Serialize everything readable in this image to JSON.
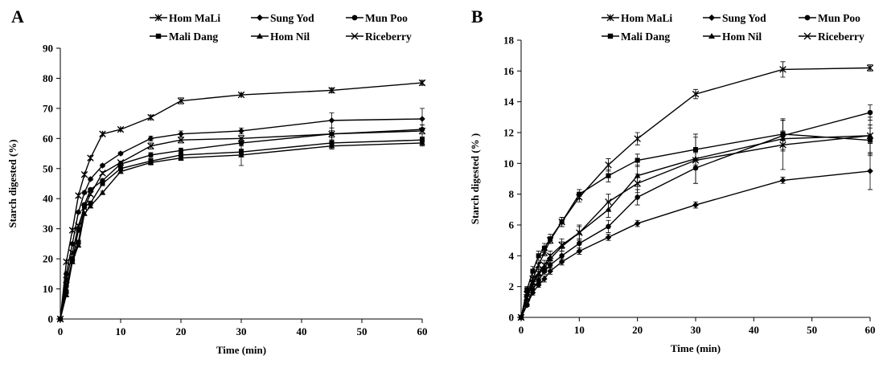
{
  "chart_data": [
    {
      "type": "line",
      "panel_label": "A",
      "xlabel": "Time (min)",
      "ylabel": "Starch digested  (%)",
      "xlim": [
        0,
        60
      ],
      "ylim": [
        0,
        90
      ],
      "xticks": [
        0,
        10,
        20,
        30,
        40,
        50,
        60
      ],
      "yticks": [
        0,
        10,
        20,
        30,
        40,
        50,
        60,
        70,
        80,
        90
      ],
      "grid": false,
      "legend": "top",
      "series": [
        {
          "name": "Hom MaLi",
          "marker": "asterisk",
          "x": [
            0,
            1,
            2,
            3,
            4,
            5,
            7,
            10,
            15,
            20,
            30,
            45,
            60
          ],
          "values": [
            0,
            19,
            29.5,
            41,
            48,
            53.5,
            61.5,
            63,
            67,
            72.5,
            74.5,
            76,
            78.5
          ],
          "errors": [
            0,
            0.5,
            0.5,
            0.5,
            0.5,
            0.5,
            0.5,
            0.5,
            0.8,
            1,
            0.5,
            0.8,
            0.8
          ]
        },
        {
          "name": "Sung Yod",
          "marker": "diamond",
          "x": [
            0,
            1,
            2,
            3,
            4,
            5,
            7,
            10,
            15,
            20,
            30,
            45,
            60
          ],
          "values": [
            0,
            15,
            25,
            35.5,
            42,
            46.5,
            51,
            55,
            60,
            61.5,
            62.5,
            66,
            66.5
          ],
          "errors": [
            0,
            0.5,
            0.5,
            0.5,
            0.5,
            0.5,
            0.5,
            0.5,
            0.8,
            1,
            1,
            2.5,
            3.5
          ]
        },
        {
          "name": "Mun Poo",
          "marker": "circle",
          "x": [
            0,
            1,
            2,
            3,
            4,
            5,
            7,
            10,
            15,
            20,
            30,
            45,
            60
          ],
          "values": [
            0,
            11,
            19.5,
            29.5,
            38,
            43,
            46,
            51.5,
            54.5,
            56,
            58.5,
            61.5,
            63
          ],
          "errors": [
            0,
            0.5,
            0.5,
            0.5,
            0.5,
            0.5,
            0.5,
            0.5,
            0.8,
            0.8,
            1,
            1.2,
            1.5
          ]
        },
        {
          "name": "Mali Dang",
          "marker": "square",
          "x": [
            0,
            1,
            2,
            3,
            4,
            5,
            7,
            10,
            15,
            20,
            30,
            45,
            60
          ],
          "values": [
            0,
            9,
            20,
            25.5,
            37.5,
            38.5,
            45,
            50,
            52.5,
            54.5,
            55.5,
            58.5,
            59.5
          ],
          "errors": [
            0,
            0.5,
            0.5,
            0.5,
            0.5,
            0.5,
            0.5,
            0.5,
            0.8,
            0.8,
            1,
            1,
            1
          ]
        },
        {
          "name": "Hom Nil",
          "marker": "triangle",
          "x": [
            0,
            1,
            2,
            3,
            4,
            5,
            7,
            10,
            15,
            20,
            30,
            45,
            60
          ],
          "values": [
            0,
            8,
            19,
            24.5,
            35,
            37.5,
            42,
            49,
            52,
            53.5,
            54.5,
            57.5,
            58.5
          ],
          "errors": [
            0,
            0.5,
            0.5,
            0.5,
            0.5,
            0.5,
            0.5,
            0.5,
            0.8,
            0.8,
            3.5,
            1,
            1
          ]
        },
        {
          "name": "Riceberry",
          "marker": "x",
          "x": [
            0,
            1,
            2,
            3,
            4,
            5,
            7,
            10,
            15,
            20,
            30,
            45,
            60
          ],
          "values": [
            0,
            13,
            22,
            31,
            37,
            41.5,
            48.5,
            52,
            57.5,
            59.5,
            60,
            61.5,
            62.5
          ],
          "errors": [
            0,
            0.5,
            0.5,
            0.5,
            0.5,
            0.5,
            0.5,
            0.5,
            1,
            1,
            1,
            2,
            2
          ]
        }
      ]
    },
    {
      "type": "line",
      "panel_label": "B",
      "xlabel": "Time (min)",
      "ylabel": "Starch digested  (% )",
      "xlim": [
        0,
        60
      ],
      "ylim": [
        0,
        18
      ],
      "xticks": [
        0,
        10,
        20,
        30,
        40,
        50,
        60
      ],
      "yticks": [
        0,
        2,
        4,
        6,
        8,
        10,
        12,
        14,
        16,
        18
      ],
      "grid": false,
      "legend": "top",
      "series": [
        {
          "name": "Hom MaLi",
          "marker": "asterisk",
          "x": [
            0,
            1,
            2,
            3,
            4,
            5,
            7,
            10,
            15,
            20,
            30,
            45,
            60
          ],
          "values": [
            0,
            1.5,
            2.5,
            3.4,
            4.2,
            5,
            6.2,
            7.8,
            9.9,
            11.6,
            14.5,
            16.1,
            16.2
          ],
          "errors": [
            0,
            0.15,
            0.2,
            0.2,
            0.2,
            0.2,
            0.3,
            0.3,
            0.4,
            0.4,
            0.3,
            0.5,
            0.2
          ]
        },
        {
          "name": "Sung Yod",
          "marker": "diamond",
          "x": [
            0,
            1,
            2,
            3,
            4,
            5,
            7,
            10,
            15,
            20,
            30,
            45,
            60
          ],
          "values": [
            0,
            0.8,
            1.6,
            2.1,
            2.5,
            3,
            3.6,
            4.3,
            5.2,
            6.1,
            7.3,
            8.9,
            9.5
          ],
          "errors": [
            0,
            0.1,
            0.15,
            0.15,
            0.2,
            0.2,
            0.2,
            0.2,
            0.2,
            0.2,
            0.2,
            0.2,
            1.2
          ]
        },
        {
          "name": "Mun Poo",
          "marker": "circle",
          "x": [
            0,
            1,
            2,
            3,
            4,
            5,
            7,
            10,
            15,
            20,
            30,
            45,
            60
          ],
          "values": [
            0,
            0.8,
            1.8,
            2.4,
            3,
            3.4,
            4,
            4.8,
            5.9,
            7.8,
            9.7,
            11.8,
            13.3
          ],
          "errors": [
            0,
            0.1,
            0.2,
            0.2,
            0.2,
            0.2,
            0.3,
            0.3,
            0.4,
            0.5,
            1,
            1,
            0.5
          ]
        },
        {
          "name": "Mali Dang",
          "marker": "square",
          "x": [
            0,
            1,
            2,
            3,
            4,
            5,
            7,
            10,
            15,
            20,
            30,
            45,
            60
          ],
          "values": [
            0,
            1.8,
            3,
            4,
            4.5,
            5.1,
            6.2,
            8,
            9.2,
            10.2,
            10.9,
            11.9,
            11.5
          ],
          "errors": [
            0,
            0.2,
            0.3,
            0.3,
            0.3,
            0.3,
            0.3,
            0.3,
            0.4,
            0.4,
            1,
            1,
            1
          ]
        },
        {
          "name": "Hom Nil",
          "marker": "triangle",
          "x": [
            0,
            1,
            2,
            3,
            4,
            5,
            7,
            10,
            15,
            20,
            30,
            45,
            60
          ],
          "values": [
            0,
            1.2,
            2.2,
            2.8,
            3.2,
            3.8,
            4.6,
            5.5,
            7,
            9.2,
            10.3,
            11.6,
            11.8
          ],
          "errors": [
            0,
            0.2,
            0.2,
            0.3,
            0.3,
            0.3,
            0.3,
            0.4,
            0.5,
            0.7,
            0.7,
            0.5,
            0.5
          ]
        },
        {
          "name": "Riceberry",
          "marker": "x",
          "x": [
            0,
            1,
            2,
            3,
            4,
            5,
            7,
            10,
            15,
            20,
            30,
            45,
            60
          ],
          "values": [
            0,
            1.3,
            2.3,
            2.9,
            3.4,
            4,
            4.7,
            5.5,
            7.5,
            8.7,
            10.2,
            11.2,
            11.8
          ],
          "errors": [
            0,
            0.2,
            0.3,
            0.3,
            0.3,
            0.3,
            0.4,
            0.5,
            0.5,
            0.6,
            1.5,
            1.6,
            1.2
          ]
        }
      ]
    }
  ]
}
